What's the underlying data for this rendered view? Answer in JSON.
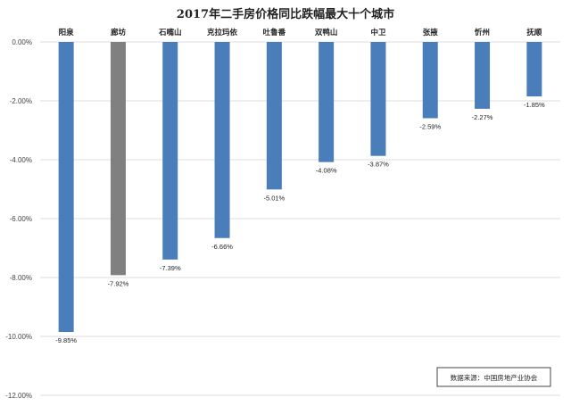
{
  "chart_data": {
    "type": "bar",
    "title": "2017年二手房价格同比跌幅最大十个城市",
    "categories": [
      "阳泉",
      "廊坊",
      "石嘴山",
      "克拉玛依",
      "吐鲁番",
      "双鸭山",
      "中卫",
      "张掖",
      "忻州",
      "抚顺"
    ],
    "values": [
      -9.85,
      -7.92,
      -7.39,
      -6.66,
      -5.01,
      -4.08,
      -3.87,
      -2.59,
      -2.27,
      -1.85
    ],
    "data_labels": [
      "-9.85%",
      "-7.92%",
      "-7.39%",
      "-6.66%",
      "-5.01%",
      "-4.08%",
      "-3.87%",
      "-2.59%",
      "-2.27%",
      "-1.85%"
    ],
    "ylim": [
      -12,
      0
    ],
    "yticks": [
      0,
      -2,
      -4,
      -6,
      -8,
      -10,
      -12
    ],
    "ytick_labels": [
      "0.00%",
      "-2.00%",
      "-4.00%",
      "-6.00%",
      "-8.00%",
      "-10.00%",
      "-12.00%"
    ],
    "xlabel": "",
    "ylabel": "",
    "grid": true,
    "category_position": "top",
    "colors": {
      "default": "#4a7ebb",
      "highlight": "#808080",
      "highlight_index": 1
    },
    "source_note": "数据来源：中国房地产业协会"
  }
}
